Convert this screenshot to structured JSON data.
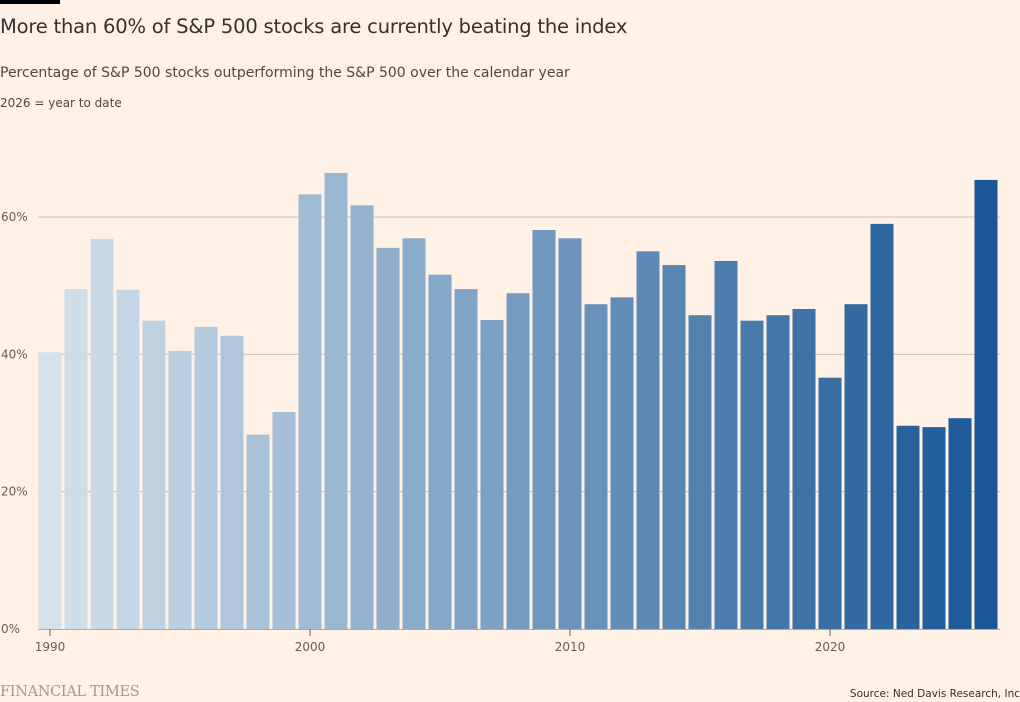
{
  "header": {
    "title": "More than 60% of S&P 500 stocks are currently beating the index",
    "subtitle": "Percentage of S&P 500 stocks outperforming the S&P 500 over the calendar year",
    "note": "2026 = year to date"
  },
  "footer": {
    "brand": "FINANCIAL TIMES",
    "source": "Source: Ned Davis Research, Inc"
  },
  "colors": {
    "background": "#fff1e5",
    "bar_start": "#d3e1ec",
    "bar_end": "#1a5796",
    "gridline": "#ccbfb6"
  },
  "chart_data": {
    "type": "bar",
    "title": "More than 60% of S&P 500 stocks are currently beating the index",
    "subtitle": "Percentage of S&P 500 stocks outperforming the S&P 500 over the calendar year",
    "xlabel": "",
    "ylabel": "",
    "categories": [
      1990,
      1991,
      1992,
      1993,
      1994,
      1995,
      1996,
      1997,
      1998,
      1999,
      2000,
      2001,
      2002,
      2003,
      2004,
      2005,
      2006,
      2007,
      2008,
      2009,
      2010,
      2011,
      2012,
      2013,
      2014,
      2015,
      2016,
      2017,
      2018,
      2019,
      2020,
      2021,
      2022,
      2023,
      2024,
      2025,
      2026
    ],
    "values": [
      40.3,
      49.5,
      56.8,
      49.4,
      44.9,
      40.5,
      44.0,
      42.7,
      28.3,
      31.6,
      63.3,
      66.4,
      61.7,
      55.5,
      56.9,
      51.6,
      49.5,
      45.0,
      48.9,
      58.1,
      56.9,
      47.3,
      48.3,
      55.0,
      53.0,
      45.7,
      53.6,
      44.9,
      45.7,
      46.6,
      36.6,
      47.3,
      59.0,
      29.6,
      29.4,
      30.7,
      65.4
    ],
    "ylim": [
      0,
      70
    ],
    "yticks": [
      0,
      20,
      40,
      60
    ],
    "ytick_labels": [
      "0%",
      "20%",
      "40%",
      "60%"
    ],
    "xticks": [
      1990,
      2000,
      2010,
      2020
    ],
    "xtick_labels": [
      "1990",
      "2000",
      "2010",
      "2020"
    ],
    "grid": true,
    "legend": "none",
    "annotation": "2026 = year to date"
  }
}
